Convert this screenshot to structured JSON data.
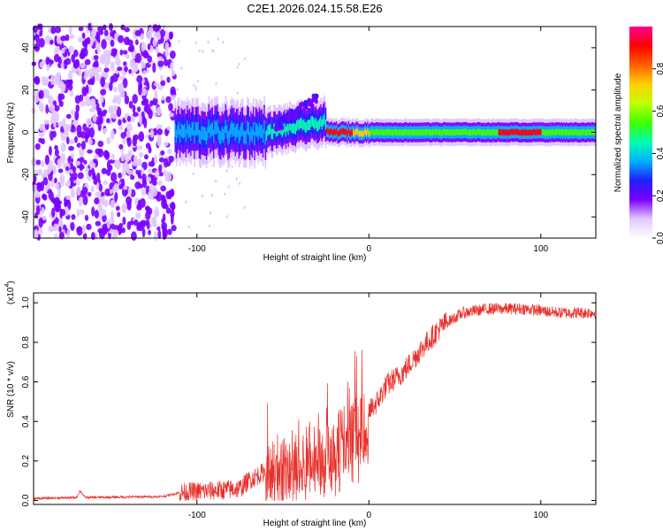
{
  "title": "C2E1.2026.024.15.58.E26",
  "chart_data": [
    {
      "type": "heatmap",
      "name": "spectrogram",
      "xlabel": "Height of straight line (km)",
      "ylabel": "Frequency (Hz)",
      "xlim": [
        -195,
        132
      ],
      "ylim": [
        -50,
        50
      ],
      "xticks": [
        -100,
        0,
        100
      ],
      "xtick_labels": [
        "-100",
        "0",
        "100"
      ],
      "yticks": [
        -40,
        -20,
        0,
        20,
        40
      ],
      "ytick_labels": [
        "-40",
        "-20",
        "0",
        "20",
        "40"
      ],
      "colorbar": {
        "label": "Normalized spectral amplitude",
        "range": [
          0,
          1
        ],
        "ticks": [
          0.0,
          0.2,
          0.4,
          0.6,
          0.8
        ],
        "tick_labels": [
          "0.0",
          "0.2",
          "0.4",
          "0.6",
          "0.8"
        ],
        "colormap": [
          "#ffffff",
          "#e0c8ff",
          "#7a00ff",
          "#2020ff",
          "#00b0ff",
          "#00ffb0",
          "#40ff00",
          "#c0ff00",
          "#ffd000",
          "#ff6000",
          "#ff0000",
          "#ff0090"
        ]
      },
      "regions": [
        {
          "description": "noise",
          "x_range": [
            -195,
            -113
          ],
          "freq_range": [
            -50,
            50
          ],
          "level": 0.15
        },
        {
          "description": "carrier",
          "x_range": [
            -113,
            132
          ],
          "freq_center": 0,
          "level": 0.5
        }
      ]
    },
    {
      "type": "line",
      "name": "snr",
      "xlabel": "Height of straight line (km)",
      "ylabel": "SNR (10 * v/v)",
      "y_multiplier": "(x10",
      "y_multiplier_exp": "4",
      "y_multiplier_close": ")",
      "xlim": [
        -195,
        132
      ],
      "ylim": [
        -0.02,
        1.05
      ],
      "xticks": [
        -100,
        0,
        100
      ],
      "xtick_labels": [
        "-100",
        "0",
        "100"
      ],
      "yticks": [
        0.0,
        0.2,
        0.4,
        0.6,
        0.8,
        1.0
      ],
      "ytick_labels": [
        "0.0",
        "0.2",
        "0.4",
        "0.6",
        "0.8",
        "1.0"
      ],
      "line_color": "#e8302a",
      "envelope": {
        "x": [
          -195,
          -170,
          -168,
          -165,
          -120,
          -110,
          -90,
          -75,
          -70,
          -60,
          -50,
          -40,
          -30,
          -20,
          -10,
          -5,
          0,
          5,
          10,
          20,
          30,
          40,
          45,
          55,
          70,
          90,
          110,
          132
        ],
        "y": [
          0.01,
          0.015,
          0.05,
          0.015,
          0.02,
          0.04,
          0.05,
          0.06,
          0.1,
          0.15,
          0.18,
          0.22,
          0.27,
          0.35,
          0.37,
          0.4,
          0.45,
          0.5,
          0.58,
          0.65,
          0.76,
          0.86,
          0.9,
          0.95,
          0.97,
          0.97,
          0.95,
          0.95
        ]
      }
    }
  ]
}
